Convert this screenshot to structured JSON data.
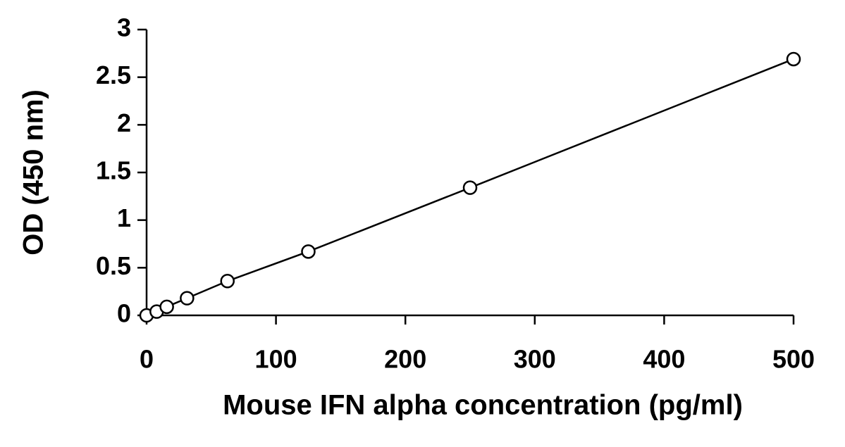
{
  "chart_data": {
    "type": "scatter",
    "x_label": "Mouse IFN alpha concentration (pg/ml)",
    "y_label": "OD (450 nm)",
    "x": [
      0,
      7.8,
      15.6,
      31.25,
      62.5,
      125,
      250,
      500
    ],
    "values": [
      0,
      0.04,
      0.09,
      0.18,
      0.36,
      0.67,
      1.34,
      2.69
    ],
    "color": "#000000",
    "connect": true,
    "marker": "circle",
    "xlim": [
      0,
      500
    ],
    "xticks": [
      0,
      100,
      200,
      300,
      400,
      500
    ],
    "ylim": [
      0,
      3
    ],
    "yticks": [
      0,
      0.5,
      1,
      1.5,
      2,
      2.5,
      3
    ],
    "grid": false
  }
}
